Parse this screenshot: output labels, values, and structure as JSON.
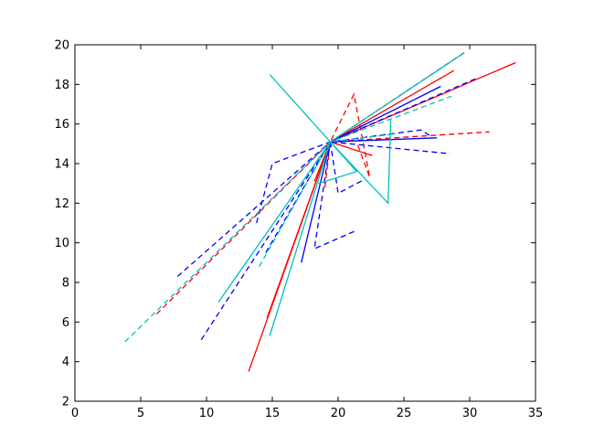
{
  "chart_data": {
    "type": "line",
    "title": "",
    "xlabel": "",
    "ylabel": "",
    "xlim": [
      0,
      35
    ],
    "ylim": [
      2,
      20
    ],
    "xticks": [
      "0",
      "5",
      "10",
      "15",
      "20",
      "25",
      "30",
      "35"
    ],
    "yticks": [
      "2",
      "4",
      "6",
      "8",
      "10",
      "12",
      "14",
      "16",
      "18",
      "20"
    ],
    "grid": false,
    "legend": "none",
    "colors": {
      "red": "#ff0000",
      "blue": "#0000ff",
      "cyan": "#00bfbf",
      "axes": "#000000"
    },
    "center": [
      19.4,
      15.1
    ],
    "series": [
      {
        "color": "red",
        "style": "solid",
        "x": [
          13.2,
          19.4,
          33.5
        ],
        "y": [
          3.5,
          15.1,
          19.1
        ]
      },
      {
        "color": "red",
        "style": "solid",
        "x": [
          14.6,
          19.4,
          28.8
        ],
        "y": [
          6.2,
          15.1,
          18.7
        ]
      },
      {
        "color": "red",
        "style": "solid",
        "x": [
          19.4,
          22.6
        ],
        "y": [
          15.1,
          14.4
        ]
      },
      {
        "color": "red",
        "style": "solid",
        "x": [
          18.2,
          19.4
        ],
        "y": [
          13.1,
          15.1
        ]
      },
      {
        "color": "red",
        "style": "dashed",
        "x": [
          19.4,
          29.8
        ],
        "y": [
          15.1,
          19.7
        ]
      },
      {
        "color": "red",
        "style": "dashed",
        "x": [
          19.4,
          31.5
        ],
        "y": [
          15.1,
          15.6
        ]
      },
      {
        "color": "red",
        "style": "dashed",
        "x": [
          6.2,
          19.4,
          21.2,
          22.4,
          21.4
        ],
        "y": [
          6.4,
          15.1,
          17.5,
          13.3,
          15.1
        ]
      },
      {
        "color": "red",
        "style": "dashed",
        "x": [
          19.0,
          19.4
        ],
        "y": [
          12.8,
          15.1
        ]
      },
      {
        "color": "blue",
        "style": "solid",
        "x": [
          17.2,
          19.4,
          27.8
        ],
        "y": [
          9.0,
          15.1,
          17.9
        ]
      },
      {
        "color": "blue",
        "style": "solid",
        "x": [
          19.4,
          27.5
        ],
        "y": [
          15.1,
          15.3
        ]
      },
      {
        "color": "blue",
        "style": "dashed",
        "x": [
          7.8,
          19.4,
          30.5
        ],
        "y": [
          8.3,
          15.1,
          18.3
        ]
      },
      {
        "color": "blue",
        "style": "dashed",
        "x": [
          9.6,
          19.4,
          28.5
        ],
        "y": [
          5.1,
          15.1,
          14.5
        ]
      },
      {
        "color": "blue",
        "style": "dashed",
        "x": [
          13.8,
          15.0,
          19.4,
          26.3,
          27.0
        ],
        "y": [
          11.0,
          14.0,
          15.1,
          15.7,
          15.4
        ]
      },
      {
        "color": "blue",
        "style": "dashed",
        "x": [
          14.5,
          19.4,
          18.2,
          21.3
        ],
        "y": [
          9.5,
          15.1,
          9.7,
          10.6
        ]
      },
      {
        "color": "blue",
        "style": "dashed",
        "x": [
          19.4,
          20.0,
          22.0
        ],
        "y": [
          15.1,
          12.5,
          13.2
        ]
      },
      {
        "color": "cyan",
        "style": "solid",
        "x": [
          14.8,
          19.4,
          23.8,
          24.0
        ],
        "y": [
          18.5,
          15.1,
          12.0,
          16.2
        ]
      },
      {
        "color": "cyan",
        "style": "solid",
        "x": [
          14.8,
          19.4,
          29.6
        ],
        "y": [
          5.3,
          15.1,
          19.6
        ]
      },
      {
        "color": "cyan",
        "style": "solid",
        "x": [
          10.9,
          19.4,
          21.4,
          18.5
        ],
        "y": [
          7.0,
          15.1,
          13.6,
          13.0
        ]
      },
      {
        "color": "cyan",
        "style": "dashed",
        "x": [
          3.8,
          19.4,
          28.6
        ],
        "y": [
          5.0,
          15.1,
          17.4
        ]
      },
      {
        "color": "cyan",
        "style": "dashed",
        "x": [
          14.0,
          19.4,
          24.3
        ],
        "y": [
          8.8,
          15.1,
          15.5
        ]
      }
    ]
  }
}
